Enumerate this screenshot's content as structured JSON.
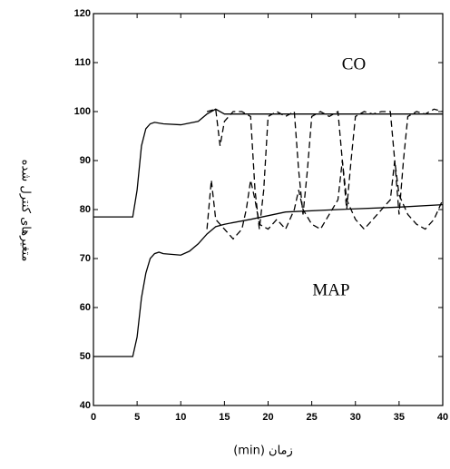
{
  "chart_data": {
    "type": "line",
    "y_label": "متغیرهای کنترل شده",
    "x_label": "زمان (min)",
    "annotations": [
      "CO",
      "MAP"
    ],
    "xlim": [
      0,
      40
    ],
    "xticks": [
      0,
      5,
      10,
      15,
      20,
      25,
      30,
      35,
      40
    ],
    "ylim": [
      40,
      120
    ],
    "yticks": [
      40,
      50,
      60,
      70,
      80,
      90,
      100,
      110,
      120
    ],
    "series": [
      {
        "color": "#000000",
        "dash": false,
        "x": [
          0,
          4.5,
          5,
          5.5,
          6,
          6.5,
          7,
          8,
          10,
          12,
          13,
          14,
          15,
          20,
          30,
          40
        ],
        "values": [
          78.5,
          78.5,
          84,
          93,
          96.5,
          97.5,
          97.8,
          97.5,
          97.3,
          98,
          99.5,
          100.5,
          99.5,
          99.5,
          99.5,
          99.5
        ]
      },
      {
        "color": "#000000",
        "dash": false,
        "x": [
          0,
          4.5,
          5,
          5.5,
          6,
          6.5,
          7,
          7.5,
          8,
          10,
          11,
          12,
          13,
          14,
          15,
          18,
          22,
          28,
          35,
          40
        ],
        "values": [
          50,
          50,
          54,
          62,
          67,
          70,
          71,
          71.3,
          71,
          70.7,
          71.5,
          73,
          75,
          76.5,
          77,
          78,
          79.5,
          80,
          80.5,
          81
        ]
      },
      {
        "color": "#000000",
        "dash": true,
        "x": [
          13,
          14,
          14.5,
          15,
          16,
          17,
          18,
          18.5,
          19,
          19.5,
          20,
          21,
          22,
          23,
          23.5,
          24,
          24.5,
          25,
          26,
          27,
          28,
          28.5,
          29,
          29.5,
          30,
          31,
          32,
          33,
          34,
          34.5,
          35,
          35.5,
          36,
          37,
          38,
          39,
          40
        ],
        "values": [
          100,
          100.5,
          93,
          98,
          100,
          100,
          99,
          84,
          76,
          84,
          99,
          100,
          99,
          100,
          88,
          79,
          88,
          99,
          100,
          99,
          100,
          90,
          80,
          90,
          99,
          100,
          99.5,
          100,
          100,
          90,
          79,
          90,
          99,
          100,
          99.5,
          100.5,
          100
        ]
      },
      {
        "color": "#000000",
        "dash": true,
        "x": [
          13,
          13.5,
          14,
          15,
          16,
          17,
          17.5,
          18,
          18.5,
          19,
          20,
          21,
          22,
          23,
          23.5,
          24,
          25,
          26,
          27,
          28,
          28.5,
          29,
          30,
          31,
          32,
          33,
          34,
          34.5,
          35,
          36,
          37,
          38,
          39,
          40
        ],
        "values": [
          76,
          86,
          78,
          76,
          74,
          76,
          80,
          86,
          82,
          77,
          76,
          78,
          76,
          80,
          84,
          80,
          77,
          76,
          79,
          82,
          90,
          82,
          78,
          76,
          78,
          80,
          82,
          90,
          83,
          79,
          77,
          76,
          78,
          82
        ]
      }
    ]
  }
}
